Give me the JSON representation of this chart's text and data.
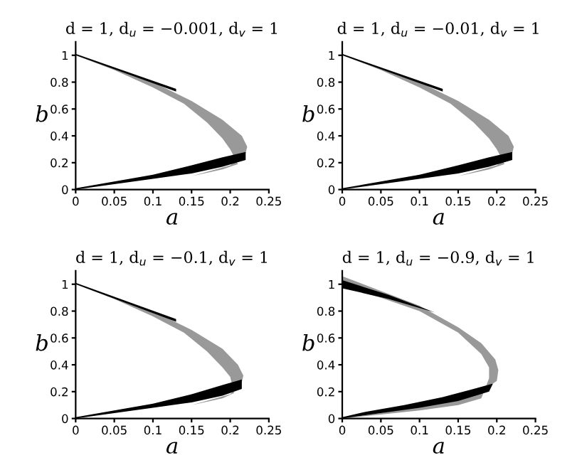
{
  "chart_data": [
    {
      "type": "area",
      "title": "d = 1, d$_{u}$ = −0.001, d$_{v}$ = 1",
      "xlabel": "a",
      "ylabel": "b",
      "xlim": [
        0,
        0.25
      ],
      "ylim": [
        0,
        1.1
      ],
      "xticks": [
        0,
        0.05,
        0.1,
        0.15,
        0.2,
        0.25
      ],
      "yticks": [
        0,
        0.2,
        0.4,
        0.6,
        0.8,
        1
      ],
      "grid": false,
      "legend": false,
      "series": [
        {
          "color": "#999999",
          "x": [
            0,
            0.05,
            0.1,
            0.15,
            0.19,
            0.215,
            0.222,
            0.22,
            0.2,
            0.15,
            0.1,
            0.05,
            0,
            0.05,
            0.1,
            0.15,
            0.19,
            0.21,
            0.2,
            0.19,
            0.17,
            0.14,
            0.1,
            0.05,
            0
          ],
          "values": [
            1.0,
            0.9,
            0.8,
            0.66,
            0.52,
            0.4,
            0.32,
            0.27,
            0.18,
            0.1,
            0.06,
            0.03,
            0,
            0.03,
            0.06,
            0.1,
            0.15,
            0.19,
            0.3,
            0.38,
            0.5,
            0.64,
            0.76,
            0.89,
            1.0
          ]
        },
        {
          "color": "#000000",
          "x": [
            0,
            0.05,
            0.1,
            0.15,
            0.19,
            0.22,
            0.22,
            0.19,
            0.15,
            0.1,
            0.05,
            0
          ],
          "values": [
            0,
            0.04,
            0.08,
            0.12,
            0.17,
            0.22,
            0.28,
            0.24,
            0.18,
            0.11,
            0.06,
            0.01
          ]
        },
        {
          "color": "#000000",
          "x": [
            0,
            0.13,
            0.13,
            0
          ],
          "values": [
            1.0,
            0.73,
            0.75,
            1.01
          ]
        }
      ]
    },
    {
      "type": "area",
      "title": "d = 1, d$_{u}$ = −0.01, d$_{v}$ = 1",
      "xlabel": "a",
      "ylabel": "b",
      "xlim": [
        0,
        0.25
      ],
      "ylim": [
        0,
        1.1
      ],
      "xticks": [
        0,
        0.05,
        0.1,
        0.15,
        0.2,
        0.25
      ],
      "yticks": [
        0,
        0.2,
        0.4,
        0.6,
        0.8,
        1
      ],
      "grid": false,
      "legend": false,
      "series": [
        {
          "color": "#999999",
          "x": [
            0,
            0.05,
            0.1,
            0.15,
            0.19,
            0.215,
            0.222,
            0.22,
            0.2,
            0.15,
            0.1,
            0.05,
            0,
            0.05,
            0.1,
            0.15,
            0.19,
            0.21,
            0.2,
            0.19,
            0.17,
            0.14,
            0.1,
            0.05,
            0
          ],
          "values": [
            1.0,
            0.9,
            0.8,
            0.66,
            0.52,
            0.4,
            0.32,
            0.27,
            0.18,
            0.1,
            0.06,
            0.03,
            0,
            0.03,
            0.06,
            0.1,
            0.15,
            0.19,
            0.3,
            0.38,
            0.5,
            0.64,
            0.76,
            0.89,
            1.0
          ]
        },
        {
          "color": "#000000",
          "x": [
            0,
            0.05,
            0.1,
            0.15,
            0.19,
            0.22,
            0.22,
            0.19,
            0.15,
            0.1,
            0.05,
            0
          ],
          "values": [
            0,
            0.04,
            0.08,
            0.12,
            0.17,
            0.22,
            0.28,
            0.24,
            0.18,
            0.11,
            0.06,
            0.01
          ]
        },
        {
          "color": "#000000",
          "x": [
            0,
            0.13,
            0.13,
            0
          ],
          "values": [
            1.0,
            0.73,
            0.75,
            1.01
          ]
        }
      ]
    },
    {
      "type": "area",
      "title": "d = 1, d$_{u}$ = −0.1, d$_{v}$ = 1",
      "xlabel": "a",
      "ylabel": "b",
      "xlim": [
        0,
        0.25
      ],
      "ylim": [
        0,
        1.1
      ],
      "xticks": [
        0,
        0.05,
        0.1,
        0.15,
        0.2,
        0.25
      ],
      "yticks": [
        0,
        0.2,
        0.4,
        0.6,
        0.8,
        1
      ],
      "grid": false,
      "legend": false,
      "series": [
        {
          "color": "#999999",
          "x": [
            0,
            0.05,
            0.1,
            0.15,
            0.19,
            0.21,
            0.217,
            0.215,
            0.2,
            0.15,
            0.1,
            0.05,
            0,
            0.05,
            0.1,
            0.15,
            0.19,
            0.205,
            0.2,
            0.19,
            0.17,
            0.14,
            0.1,
            0.05,
            0
          ],
          "values": [
            1.0,
            0.9,
            0.8,
            0.66,
            0.52,
            0.4,
            0.32,
            0.27,
            0.18,
            0.1,
            0.06,
            0.03,
            0,
            0.03,
            0.06,
            0.1,
            0.15,
            0.19,
            0.31,
            0.38,
            0.5,
            0.64,
            0.76,
            0.89,
            1.0
          ]
        },
        {
          "color": "#000000",
          "x": [
            0,
            0.05,
            0.1,
            0.15,
            0.19,
            0.215,
            0.215,
            0.19,
            0.15,
            0.1,
            0.05,
            0
          ],
          "values": [
            0,
            0.04,
            0.08,
            0.12,
            0.17,
            0.22,
            0.29,
            0.25,
            0.18,
            0.11,
            0.06,
            0.01
          ]
        },
        {
          "color": "#000000",
          "x": [
            0,
            0.13,
            0.13,
            0
          ],
          "values": [
            1.0,
            0.72,
            0.74,
            1.01
          ]
        }
      ]
    },
    {
      "type": "area",
      "title": "d = 1, d$_{u}$ = −0.9, d$_{v}$ = 1",
      "xlabel": "a",
      "ylabel": "b",
      "xlim": [
        0,
        0.25
      ],
      "ylim": [
        0,
        1.1
      ],
      "xticks": [
        0,
        0.05,
        0.1,
        0.15,
        0.2,
        0.25
      ],
      "yticks": [
        0,
        0.2,
        0.4,
        0.6,
        0.8,
        1
      ],
      "grid": false,
      "legend": false,
      "series": [
        {
          "color": "#999999",
          "x": [
            0,
            0.05,
            0.1,
            0.15,
            0.18,
            0.198,
            0.202,
            0.2,
            0.18,
            0.15,
            0.1,
            0.05,
            0,
            0.05,
            0.1,
            0.15,
            0.18,
            0.19,
            0.19,
            0.18,
            0.15,
            0.1,
            0.05,
            0
          ],
          "values": [
            1.06,
            0.95,
            0.84,
            0.68,
            0.56,
            0.44,
            0.36,
            0.28,
            0.2,
            0.14,
            0.09,
            0.04,
            0,
            0.03,
            0.06,
            0.1,
            0.15,
            0.3,
            0.38,
            0.48,
            0.64,
            0.8,
            0.9,
            0.98
          ]
        },
        {
          "color": "#000000",
          "x": [
            0,
            0.05,
            0.1,
            0.15,
            0.19,
            0.195,
            0.17,
            0.13,
            0.08,
            0.03,
            0
          ],
          "values": [
            0,
            0.04,
            0.08,
            0.13,
            0.2,
            0.26,
            0.22,
            0.16,
            0.1,
            0.05,
            0.01
          ]
        },
        {
          "color": "#000000",
          "x": [
            0,
            0.06,
            0.12,
            0.06,
            0
          ],
          "values": [
            1.03,
            0.92,
            0.79,
            0.89,
            0.97
          ]
        }
      ]
    }
  ]
}
